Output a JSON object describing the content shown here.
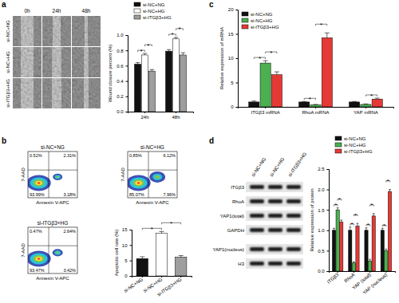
{
  "figure": {
    "panel_labels": [
      "a",
      "b",
      "c",
      "d"
    ],
    "wound_images": {
      "columns": [
        "0h",
        "24h",
        "48h"
      ],
      "rows": [
        "si-NC+NG",
        "si-NC+HG",
        "si-ITGβ3+HG"
      ]
    },
    "flow_plots": {
      "x_label": "Annexin V-APC",
      "y_label": "7-AAD",
      "plots": [
        {
          "title": "si-NC+NG",
          "quadrants": {
            "upper_left": "0.52%",
            "upper_right": "2.31%",
            "lower_right": "3.18%",
            "lower_left": "93.99%"
          }
        },
        {
          "title": "si-NC+HG",
          "quadrants": {
            "upper_left": "0.85%",
            "upper_right": "6.12%",
            "lower_right": "7.96%",
            "lower_left": "85.07%"
          }
        },
        {
          "title": "si-ITGβ3+HG",
          "quadrants": {
            "upper_left": "0.47%",
            "upper_right": "2.64%",
            "lower_right": "3.42%",
            "lower_left": "93.47%"
          }
        }
      ]
    },
    "western_blot": {
      "columns": [
        "si-NC+NG",
        "si-NC+HG",
        "si-ITGβ3+HG"
      ],
      "rows": [
        "ITGβ3",
        "RhoA",
        "YAP1(total)",
        "GAPDH",
        "YAP1(nucleus)",
        "H3"
      ]
    }
  },
  "chart_data": [
    {
      "type": "bar",
      "y_label": "Wound closure percent (%)",
      "categories": [
        "24h",
        "48h"
      ],
      "series": [
        {
          "name": "si-NC+NG",
          "color": "#111111",
          "values": [
            0.62,
            0.79
          ],
          "errors": [
            0.02,
            0.02
          ]
        },
        {
          "name": "si-NC+HG",
          "color": "#ffffff",
          "values": [
            0.74,
            0.95
          ],
          "errors": [
            0.02,
            0.02
          ]
        },
        {
          "name": "si-ITGβ3+HG",
          "color": "#9e9e9e",
          "values": [
            0.53,
            0.74
          ],
          "errors": [
            0.02,
            0.03
          ]
        }
      ],
      "ylim": [
        0,
        1
      ],
      "yticks": [
        {
          "value": 0,
          "label": "0.0"
        },
        0.2,
        0.4,
        0.6,
        0.8,
        {
          "value": 1,
          "label": "1.0"
        }
      ],
      "legend": "top",
      "annotations": [
        {
          "text": "*",
          "category": "24h",
          "between": [
            "si-NC+NG",
            "si-NC+HG"
          ]
        },
        {
          "text": "*",
          "category": "24h",
          "between": [
            "si-NC+HG",
            "si-ITGβ3+HG"
          ]
        },
        {
          "text": "*",
          "category": "48h",
          "between": [
            "si-NC+NG",
            "si-NC+HG"
          ]
        },
        {
          "text": "*",
          "category": "48h",
          "between": [
            "si-NC+HG",
            "si-ITGβ3+HG"
          ]
        }
      ]
    },
    {
      "type": "bar",
      "y_label": "Apoptotic cell rate (%)",
      "categories": [
        "si-NC+NG",
        "si-NC+HG",
        "si-ITGβ3+HG"
      ],
      "values": [
        5.6,
        13.9,
        6.1
      ],
      "errors": [
        0.6,
        0.5,
        0.5
      ],
      "colors": [
        "#111111",
        "#ffffff",
        "#9e9e9e"
      ],
      "ylim": [
        0,
        15
      ],
      "yticks": [
        0,
        5,
        10,
        15
      ],
      "annotations": [
        {
          "text": "*",
          "between": [
            "si-NC+NG",
            "si-NC+HG"
          ]
        },
        {
          "text": "*",
          "between": [
            "si-NC+HG",
            "si-ITGβ3+HG"
          ]
        }
      ]
    },
    {
      "type": "bar",
      "y_label": "Relative expression of mRNA",
      "categories": [
        "ITGβ3 mRNA",
        "RhoA mRNA",
        "YAP mRNA"
      ],
      "series": [
        {
          "name": "si-NC+NG",
          "color": "#111111",
          "values": [
            1,
            1,
            1
          ],
          "errors": [
            0.2,
            0.1,
            0.1
          ]
        },
        {
          "name": "si-NC+HG",
          "color": "#4caf50",
          "values": [
            9,
            0.4,
            0.5
          ],
          "errors": [
            0.5,
            0.1,
            0.1
          ]
        },
        {
          "name": "si-ITGβ3+HG",
          "color": "#e53935",
          "values": [
            6.6,
            14.2,
            1.6
          ],
          "errors": [
            0.6,
            1.0,
            0.2
          ]
        }
      ],
      "ylim": [
        0,
        20
      ],
      "yticks": [
        0,
        5,
        10,
        15,
        20
      ],
      "legend": "top-left",
      "annotations": [
        {
          "text": "*",
          "category": "ITGβ3 mRNA",
          "between": [
            "si-NC+NG",
            "si-NC+HG"
          ]
        },
        {
          "text": "*",
          "category": "ITGβ3 mRNA",
          "between": [
            "si-NC+HG",
            "si-ITGβ3+HG"
          ]
        },
        {
          "text": "*",
          "category": "RhoA mRNA",
          "between": [
            "si-NC+NG",
            "si-NC+HG"
          ]
        },
        {
          "text": "*",
          "category": "RhoA mRNA",
          "between": [
            "si-NC+HG",
            "si-ITGβ3+HG"
          ]
        },
        {
          "text": "*",
          "category": "YAP mRNA",
          "between": [
            "si-NC+HG",
            "si-ITGβ3+HG"
          ]
        }
      ]
    },
    {
      "type": "bar",
      "y_label": "Relative expression of protein",
      "categories": [
        "ITGβ3",
        "RhoA",
        "YAP (total)",
        "YAP (nucleus)"
      ],
      "series": [
        {
          "name": "si-NC+NG",
          "color": "#111111",
          "values": [
            1,
            1,
            1,
            1
          ],
          "errors": [
            0.05,
            0.08,
            0.06,
            0.05
          ]
        },
        {
          "name": "si-NC+HG",
          "color": "#4caf50",
          "values": [
            1.5,
            0.2,
            0.25,
            0.5
          ],
          "errors": [
            0.05,
            0.03,
            0.04,
            0.04
          ]
        },
        {
          "name": "si-ITGβ3+HG",
          "color": "#e53935",
          "values": [
            1.2,
            1.1,
            1.35,
            1.95
          ],
          "errors": [
            0.05,
            0.07,
            0.06,
            0.05
          ]
        }
      ],
      "ylim": [
        0,
        2.5
      ],
      "yticks": [
        {
          "value": 0,
          "label": "0.0"
        },
        0.5,
        {
          "value": 1,
          "label": "1.0"
        },
        1.5,
        {
          "value": 2,
          "label": "2.0"
        },
        2.5
      ],
      "legend": "top",
      "annotations": [
        {
          "text": "*",
          "category": "ITGβ3",
          "between": [
            "si-NC+NG",
            "si-NC+HG"
          ]
        },
        {
          "text": "*",
          "category": "ITGβ3",
          "between": [
            "si-NC+HG",
            "si-ITGβ3+HG"
          ]
        },
        {
          "text": "*",
          "category": "RhoA",
          "between": [
            "si-NC+NG",
            "si-NC+HG"
          ]
        },
        {
          "text": "*",
          "category": "RhoA",
          "between": [
            "si-NC+HG",
            "si-ITGβ3+HG"
          ]
        },
        {
          "text": "*",
          "category": "YAP (total)",
          "between": [
            "si-NC+NG",
            "si-NC+HG"
          ]
        },
        {
          "text": "*",
          "category": "YAP (total)",
          "between": [
            "si-NC+HG",
            "si-ITGβ3+HG"
          ]
        },
        {
          "text": "*",
          "category": "YAP (nucleus)",
          "between": [
            "si-NC+NG",
            "si-NC+HG"
          ]
        },
        {
          "text": "*",
          "category": "YAP (nucleus)",
          "between": [
            "si-NC+HG",
            "si-ITGβ3+HG"
          ]
        }
      ]
    }
  ]
}
